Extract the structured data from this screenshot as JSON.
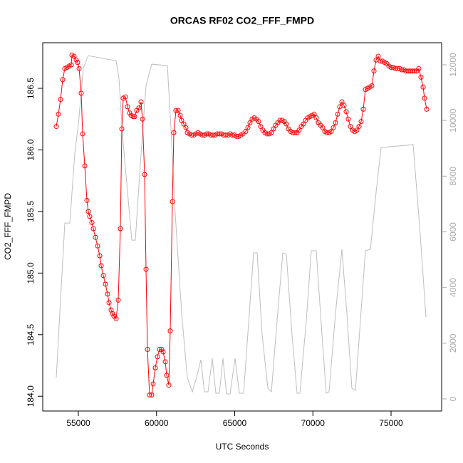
{
  "chart_data": {
    "type": "line",
    "title": "ORCAS RF02 CO2_FFF_FMPD",
    "x_label": "UTC Seconds",
    "y_label": "CO2_FFF_FMPD",
    "xlim": [
      52722,
      78235
    ],
    "xticks": [
      55000,
      60000,
      65000,
      70000,
      75000
    ],
    "ylim": [
      183.88,
      186.87
    ],
    "yticks": [
      {
        "value": 184,
        "label": "184.0"
      },
      184.5,
      {
        "value": 185,
        "label": "185.0"
      },
      185.5,
      {
        "value": 186,
        "label": "186.0"
      },
      186.5
    ],
    "y2lim": [
      -435,
      12793
    ],
    "y2ticks": [
      0,
      2000,
      4000,
      6000,
      8000,
      10000,
      12000
    ],
    "y2_tick_color": "#aaaaaa",
    "series": [
      {
        "color": "#ff0000",
        "marker": "circle",
        "x": [
          53588,
          53725,
          53861,
          53998,
          54134,
          54271,
          54408,
          54544,
          54590,
          54727,
          54863,
          54954,
          55046,
          55182,
          55273,
          55410,
          55547,
          55638,
          55729,
          55866,
          55957,
          56094,
          56230,
          56367,
          56458,
          56595,
          56731,
          56868,
          56959,
          57096,
          57187,
          57278,
          57415,
          57551,
          57688,
          57779,
          57870,
          58007,
          58144,
          58280,
          58371,
          58508,
          58599,
          58736,
          58872,
          59009,
          59100,
          59237,
          59328,
          59419,
          59556,
          59692,
          59784,
          59920,
          60057,
          60194,
          60330,
          60421,
          60558,
          60649,
          60786,
          60877,
          61014,
          61105,
          61241,
          61378,
          61515,
          61606,
          61743,
          61879,
          61970,
          62107,
          62244,
          62380,
          62517,
          62654,
          62790,
          62927,
          63064,
          63200,
          63337,
          63474,
          63610,
          63747,
          63884,
          64020,
          64157,
          64294,
          64430,
          64567,
          64704,
          64840,
          64977,
          65114,
          65250,
          65387,
          65524,
          65706,
          65843,
          65979,
          66116,
          66253,
          66390,
          66526,
          66663,
          66800,
          66936,
          67073,
          67210,
          67346,
          67483,
          67620,
          67756,
          67893,
          68030,
          68166,
          68303,
          68440,
          68576,
          68713,
          68850,
          68986,
          69123,
          69260,
          69396,
          69533,
          69670,
          69806,
          69943,
          70080,
          70216,
          70353,
          70490,
          70626,
          70763,
          70900,
          71036,
          71173,
          71310,
          71446,
          71583,
          71720,
          71856,
          71993,
          72130,
          72267,
          72403,
          72540,
          72677,
          72813,
          72950,
          73087,
          73223,
          73360,
          73497,
          73633,
          73770,
          73907,
          74043,
          74180,
          74317,
          74453,
          74590,
          74727,
          74863,
          75000,
          75137,
          75273,
          75410,
          75547,
          75683,
          75820,
          75957,
          76093,
          76230,
          76367,
          76503,
          76640,
          76777,
          76913,
          77050,
          77141,
          77278
        ],
        "values": [
          186.19,
          186.29,
          186.41,
          186.57,
          186.66,
          186.67,
          186.68,
          186.69,
          186.77,
          186.76,
          186.73,
          186.71,
          186.66,
          186.46,
          186.13,
          185.87,
          185.59,
          185.5,
          185.46,
          185.41,
          185.36,
          185.29,
          185.22,
          185.14,
          185.06,
          184.98,
          184.91,
          184.83,
          184.76,
          184.7,
          184.67,
          184.65,
          184.63,
          184.78,
          185.36,
          186.17,
          186.42,
          186.43,
          186.35,
          186.3,
          186.28,
          186.27,
          186.27,
          186.32,
          186.34,
          186.39,
          186.25,
          185.8,
          185.03,
          184.38,
          184.01,
          184.01,
          184.1,
          184.23,
          184.32,
          184.38,
          184.38,
          184.36,
          184.28,
          184.17,
          184.09,
          184.53,
          185.58,
          186.14,
          186.32,
          186.32,
          186.28,
          186.24,
          186.21,
          186.18,
          186.14,
          186.13,
          186.12,
          186.12,
          186.13,
          186.14,
          186.13,
          186.12,
          186.12,
          186.13,
          186.13,
          186.12,
          186.12,
          186.12,
          186.13,
          186.13,
          186.13,
          186.12,
          186.12,
          186.12,
          186.13,
          186.12,
          186.12,
          186.11,
          186.11,
          186.12,
          186.13,
          186.15,
          186.18,
          186.22,
          186.25,
          186.26,
          186.25,
          186.23,
          186.19,
          186.16,
          186.14,
          186.13,
          186.13,
          186.14,
          186.17,
          186.2,
          186.22,
          186.24,
          186.24,
          186.23,
          186.21,
          186.17,
          186.15,
          186.14,
          186.14,
          186.14,
          186.16,
          186.19,
          186.21,
          186.24,
          186.26,
          186.27,
          186.28,
          186.29,
          186.26,
          186.22,
          186.2,
          186.18,
          186.15,
          186.14,
          186.14,
          186.15,
          186.18,
          186.22,
          186.29,
          186.35,
          186.39,
          186.36,
          186.31,
          186.25,
          186.19,
          186.16,
          186.15,
          186.16,
          186.19,
          186.23,
          186.33,
          186.49,
          186.5,
          186.51,
          186.52,
          186.64,
          186.73,
          186.76,
          186.72,
          186.72,
          186.71,
          186.7,
          186.68,
          186.67,
          186.67,
          186.66,
          186.66,
          186.66,
          186.65,
          186.65,
          186.64,
          186.64,
          186.64,
          186.64,
          186.64,
          186.64,
          186.66,
          186.59,
          186.51,
          186.42,
          186.33
        ]
      },
      {
        "color": "#bebebe",
        "axis": "y2",
        "x": [
          53588,
          54134,
          54453,
          54772,
          55000,
          55319,
          55638,
          56595,
          57415,
          57597,
          57825,
          58189,
          58417,
          58645,
          58964,
          59328,
          59693,
          60695,
          60923,
          61196,
          61606,
          61970,
          62289,
          62563,
          62836,
          63064,
          63292,
          63565,
          63793,
          64020,
          64248,
          64476,
          64704,
          65023,
          65296,
          65569,
          65934,
          66207,
          66435,
          66754,
          67119,
          67346,
          67711,
          68075,
          68303,
          68667,
          68986,
          69169,
          69579,
          69898,
          70217,
          70581,
          70854,
          71036,
          71446,
          71856,
          72175,
          72494,
          72722,
          73041,
          73360,
          73679,
          74043,
          74362,
          76413,
          76868,
          77233
        ],
        "values": [
          767,
          6318,
          6318,
          8825,
          9848,
          11895,
          12330,
          12227,
          12150,
          11511,
          9465,
          7162,
          5704,
          5704,
          8441,
          11255,
          12023,
          11972,
          9720,
          6651,
          3070,
          767,
          256,
          767,
          1407,
          256,
          256,
          1458,
          205,
          205,
          1458,
          180,
          180,
          1458,
          205,
          205,
          3070,
          5244,
          5244,
          2302,
          384,
          256,
          2814,
          5244,
          5193,
          2302,
          205,
          205,
          2814,
          5321,
          5321,
          2302,
          205,
          256,
          3070,
          5372,
          3070,
          384,
          307,
          2814,
          5321,
          5372,
          7418,
          9030,
          9132,
          5883,
          2942
        ]
      }
    ]
  }
}
